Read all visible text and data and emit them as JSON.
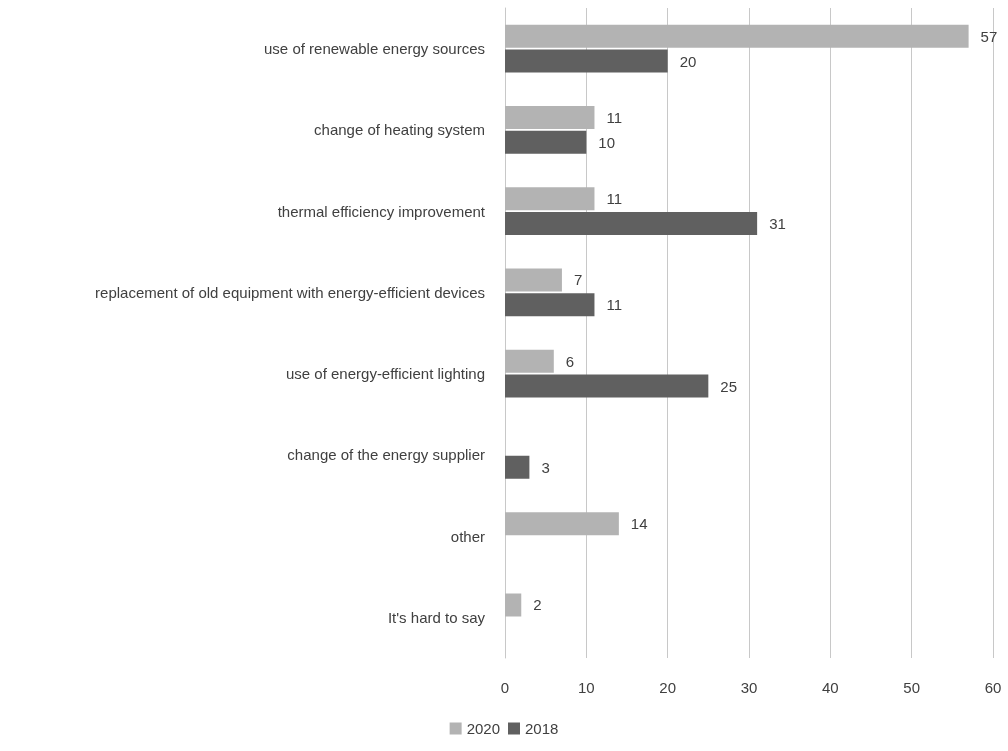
{
  "chart_data": {
    "type": "bar",
    "orientation": "horizontal",
    "categories": [
      "use of renewable energy sources",
      "change of heating system",
      "thermal efficiency improvement",
      "replacement of old equipment with energy-efficient devices",
      "use of energy-efficient lighting",
      "change of the energy supplier",
      "other",
      "It's hard to say"
    ],
    "series": [
      {
        "name": "2020",
        "color": "#b3b3b3",
        "values": [
          57,
          11,
          11,
          7,
          6,
          null,
          14,
          2
        ]
      },
      {
        "name": "2018",
        "color": "#606060",
        "values": [
          20,
          10,
          31,
          11,
          25,
          3,
          null,
          null
        ]
      }
    ],
    "xlim": [
      0,
      60
    ],
    "xticks": [
      0,
      10,
      20,
      30,
      40,
      50,
      60
    ],
    "grid": "x",
    "legend": "bottom",
    "data_labels": true
  }
}
